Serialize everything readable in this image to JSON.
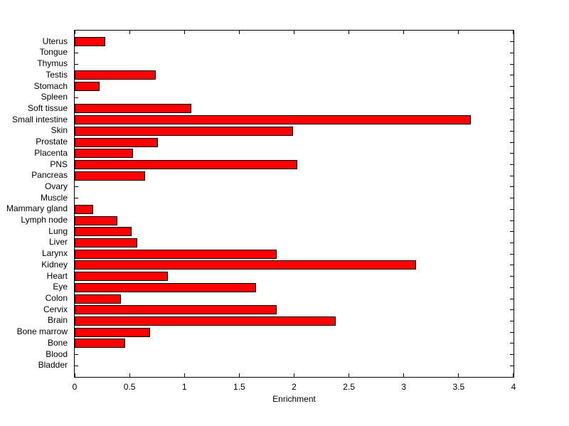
{
  "chart_data": {
    "type": "bar",
    "orientation": "horizontal",
    "xlabel": "Enrichment",
    "categories": [
      "Uterus",
      "Tongue",
      "Thymus",
      "Testis",
      "Stomach",
      "Spleen",
      "Soft tissue",
      "Small intestine",
      "Skin",
      "Prostate",
      "Placenta",
      "PNS",
      "Pancreas",
      "Ovary",
      "Muscle",
      "Mammary gland",
      "Lymph node",
      "Lung",
      "Liver",
      "Larynx",
      "Kidney",
      "Heart",
      "Eye",
      "Colon",
      "Cervix",
      "Brain",
      "Bone marrow",
      "Bone",
      "Blood",
      "Bladder"
    ],
    "values": [
      0.28,
      0,
      0,
      0.74,
      0.23,
      0,
      1.06,
      3.61,
      1.99,
      0.76,
      0.53,
      2.03,
      0.64,
      0,
      0,
      0.17,
      0.39,
      0.52,
      0.57,
      1.84,
      3.11,
      0.85,
      1.65,
      0.42,
      1.84,
      2.38,
      0.69,
      0.46,
      0,
      0
    ],
    "xlim": [
      0,
      4
    ],
    "xticks": [
      0,
      0.5,
      1,
      1.5,
      2,
      2.5,
      3,
      3.5,
      4
    ],
    "xtick_labels": [
      "0",
      "0.5",
      "1",
      "1.5",
      "2",
      "2.5",
      "3",
      "3.5",
      "4"
    ],
    "bar_color": "#ff0000",
    "bar_edge_color": "#000000",
    "axis_color": "#000000",
    "background_color": "#ffffff",
    "grid": false
  }
}
